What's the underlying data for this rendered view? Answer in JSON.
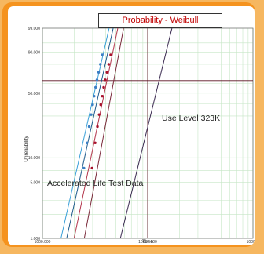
{
  "chart_data": {
    "type": "scatter",
    "title": "Probability - Weibull",
    "xlabel": "Time",
    "ylabel": "Unreliability",
    "x_scale": "log",
    "xlim": [
      1000,
      100000
    ],
    "y_scale": "weibull",
    "ylim": [
      1,
      99
    ],
    "grid": true,
    "x_ticks": [
      "1000.000",
      "10000.000",
      "100000"
    ],
    "y_ticks": [
      "1.000",
      "5.000",
      "10.000",
      "50.000",
      "90.000",
      "99.000"
    ],
    "annotations": [
      "Accelerated Life Test Data",
      "Use Level 323K"
    ],
    "series": [
      {
        "color": "#3b7fc4",
        "points": [
          [
            2480,
            7.5
          ],
          [
            2650,
            15
          ],
          [
            2780,
            23
          ],
          [
            2900,
            31
          ],
          [
            3000,
            39
          ],
          [
            3100,
            47
          ],
          [
            3200,
            56
          ],
          [
            3300,
            64
          ],
          [
            3420,
            72
          ],
          [
            3550,
            80
          ],
          [
            3700,
            88
          ]
        ]
      },
      {
        "color": "#a8122c",
        "points": [
          [
            2960,
            7.5
          ],
          [
            3170,
            15
          ],
          [
            3330,
            23
          ],
          [
            3460,
            31
          ],
          [
            3580,
            39
          ],
          [
            3700,
            47
          ],
          [
            3820,
            56
          ],
          [
            3950,
            64
          ],
          [
            4100,
            72
          ],
          [
            4260,
            80
          ],
          [
            4450,
            88
          ]
        ]
      }
    ],
    "lines": [
      {
        "color": "#3aa0d8",
        "from": [
          1500,
          1
        ],
        "to": [
          4300,
          99
        ]
      },
      {
        "color": "#1e5a8c",
        "from": [
          1700,
          1
        ],
        "to": [
          4700,
          99
        ]
      },
      {
        "color": "#b3364c",
        "from": [
          2000,
          1
        ],
        "to": [
          5200,
          99
        ]
      },
      {
        "color": "#7a2a3a",
        "from": [
          2500,
          1
        ],
        "to": [
          5900,
          99
        ]
      },
      {
        "color": "#3a2a50",
        "from": [
          5500,
          1
        ],
        "to": [
          17000,
          99
        ]
      }
    ],
    "reference_line_x": 10000
  }
}
